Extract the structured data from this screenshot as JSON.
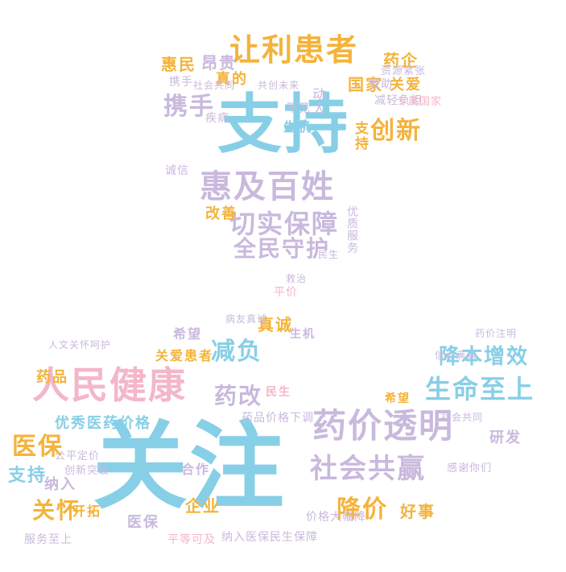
{
  "colors": {
    "blue": "#87cfe6",
    "purple": "#c9b9dd",
    "orange": "#f4b33a",
    "pink": "#f4b6c9"
  },
  "heart": {
    "words": [
      {
        "text": "支持",
        "color": "blue"
      },
      {
        "text": "让利患者",
        "color": "orange"
      },
      {
        "text": "惠及百姓",
        "color": "purple"
      },
      {
        "text": "切实保障",
        "color": "purple"
      },
      {
        "text": "携手",
        "color": "purple"
      },
      {
        "text": "创新",
        "color": "orange"
      },
      {
        "text": "全民守护",
        "color": "purple"
      },
      {
        "text": "惠民",
        "color": "orange"
      },
      {
        "text": "昂贵",
        "color": "purple"
      },
      {
        "text": "药企",
        "color": "orange"
      },
      {
        "text": "国家",
        "color": "orange"
      },
      {
        "text": "关爱",
        "color": "orange"
      },
      {
        "text": "改善",
        "color": "orange"
      },
      {
        "text": "支持",
        "color": "orange"
      },
      {
        "text": "动人",
        "color": "purple"
      },
      {
        "text": "减轻负担",
        "color": "purple"
      },
      {
        "text": "救助",
        "color": "purple"
      },
      {
        "text": "生机",
        "color": "blue"
      },
      {
        "text": "罕见",
        "color": "purple"
      },
      {
        "text": "疾病",
        "color": "purple"
      },
      {
        "text": "优质服务",
        "color": "purple"
      },
      {
        "text": "真的",
        "color": "orange"
      },
      {
        "text": "诚信",
        "color": "purple"
      },
      {
        "text": "携手",
        "color": "purple"
      },
      {
        "text": "共创未来",
        "color": "purple"
      },
      {
        "text": "社会共同",
        "color": "purple"
      },
      {
        "text": "资源紧张",
        "color": "purple"
      },
      {
        "text": "专属国家",
        "color": "pink"
      },
      {
        "text": "救治",
        "color": "purple"
      },
      {
        "text": "平价",
        "color": "pink"
      },
      {
        "text": "民生",
        "color": "purple"
      }
    ]
  },
  "lower": {
    "words": [
      {
        "text": "关注",
        "color": "blue"
      },
      {
        "text": "人民健康",
        "color": "pink"
      },
      {
        "text": "药价透明",
        "color": "purple"
      },
      {
        "text": "社会共赢",
        "color": "purple"
      },
      {
        "text": "生命至上",
        "color": "blue"
      },
      {
        "text": "降本增效",
        "color": "blue"
      },
      {
        "text": "医保",
        "color": "orange"
      },
      {
        "text": "关怀",
        "color": "orange"
      },
      {
        "text": "减负",
        "color": "blue"
      },
      {
        "text": "药改",
        "color": "purple"
      },
      {
        "text": "降价",
        "color": "orange"
      },
      {
        "text": "支持",
        "color": "blue"
      },
      {
        "text": "纳入",
        "color": "purple"
      },
      {
        "text": "优秀医药价格",
        "color": "blue"
      },
      {
        "text": "药品",
        "color": "orange"
      },
      {
        "text": "研发",
        "color": "purple"
      },
      {
        "text": "好事",
        "color": "orange"
      },
      {
        "text": "企业",
        "color": "orange"
      },
      {
        "text": "医保",
        "color": "purple"
      },
      {
        "text": "真诚",
        "color": "orange"
      },
      {
        "text": "希望",
        "color": "purple"
      },
      {
        "text": "关爱患者",
        "color": "orange"
      },
      {
        "text": "生机",
        "color": "purple"
      },
      {
        "text": "民生",
        "color": "pink"
      },
      {
        "text": "合作",
        "color": "purple"
      },
      {
        "text": "开拓",
        "color": "orange"
      },
      {
        "text": "价格大幅降",
        "color": "purple"
      },
      {
        "text": "药品价格下调",
        "color": "purple"
      },
      {
        "text": "公平定价",
        "color": "purple"
      },
      {
        "text": "社会共同",
        "color": "purple"
      },
      {
        "text": "服务至上",
        "color": "purple"
      },
      {
        "text": "纳入医保民生保障",
        "color": "purple"
      },
      {
        "text": "平等可及",
        "color": "pink"
      },
      {
        "text": "信心满满",
        "color": "purple"
      },
      {
        "text": "感谢你们",
        "color": "purple"
      },
      {
        "text": "药价注明",
        "color": "purple"
      },
      {
        "text": "人文关怀呵护",
        "color": "purple"
      },
      {
        "text": "病友真诚",
        "color": "purple"
      },
      {
        "text": "希望",
        "color": "orange"
      },
      {
        "text": "创新突破",
        "color": "purple"
      }
    ]
  }
}
